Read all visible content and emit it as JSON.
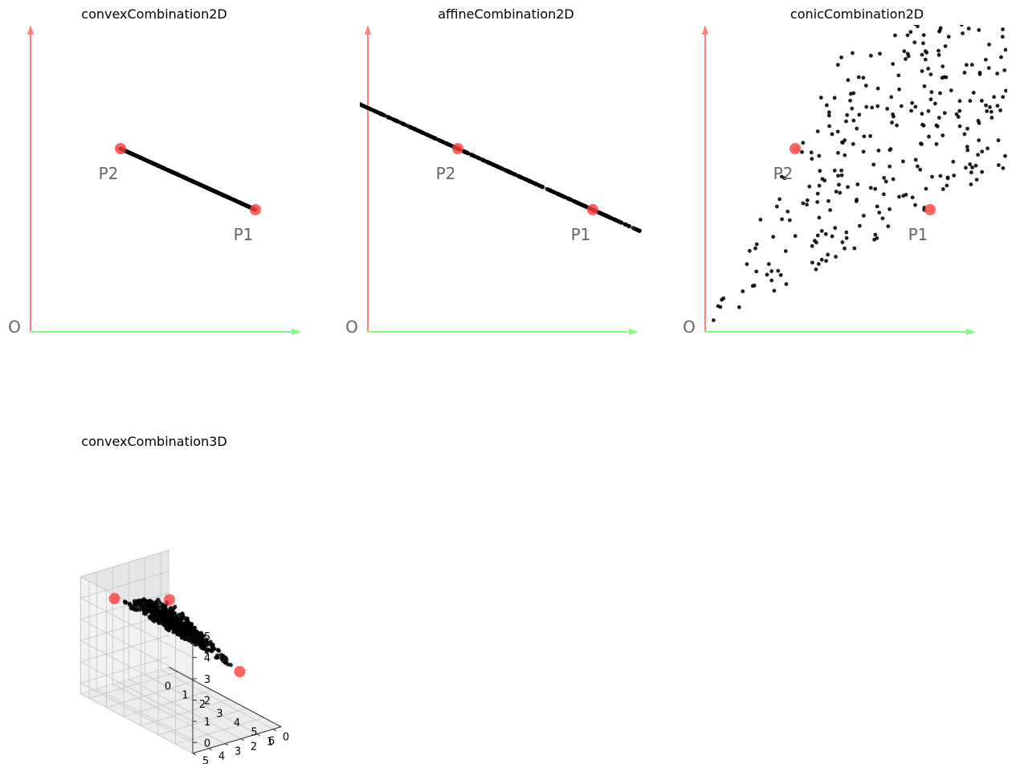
{
  "chart_data": [
    {
      "type": "scatter",
      "title": "convexCombination2D",
      "xlim": [
        0,
        4.5
      ],
      "ylim": [
        0,
        4.5
      ],
      "grid": false,
      "origin_label": "O",
      "points": [
        {
          "label": "P1",
          "x": 3.5,
          "y": 1.9
        },
        {
          "label": "P2",
          "x": 1.4,
          "y": 2.85
        }
      ],
      "samples": {
        "kind": "convex",
        "count": 400
      }
    },
    {
      "type": "scatter",
      "title": "affineCombination2D",
      "xlim": [
        0,
        4.5
      ],
      "ylim": [
        0,
        4.5
      ],
      "grid": false,
      "origin_label": "O",
      "points": [
        {
          "label": "P1",
          "x": 3.5,
          "y": 1.9
        },
        {
          "label": "P2",
          "x": 1.4,
          "y": 2.85
        }
      ],
      "samples": {
        "kind": "affine",
        "count": 500,
        "t_range": [
          -1.5,
          1.35
        ]
      }
    },
    {
      "type": "scatter",
      "title": "conicCombination2D",
      "xlim": [
        0,
        4.5
      ],
      "ylim": [
        0,
        4.5
      ],
      "grid": false,
      "origin_label": "O",
      "points": [
        {
          "label": "P1",
          "x": 3.5,
          "y": 1.9
        },
        {
          "label": "P2",
          "x": 1.4,
          "y": 2.85
        }
      ],
      "samples": {
        "kind": "conic",
        "count": 420,
        "coef_range": [
          0,
          1.5
        ]
      }
    },
    {
      "type": "scatter3d",
      "title": "convexCombination3D",
      "xlim": [
        -0.5,
        6
      ],
      "ylim": [
        -0.5,
        5
      ],
      "zlim": [
        -0.5,
        5
      ],
      "x_ticks": [
        "0",
        "1",
        "2",
        "3",
        "4",
        "5",
        "6"
      ],
      "y_ticks": [
        "0",
        "1",
        "2",
        "3",
        "4",
        "5"
      ],
      "z_ticks": [
        "0",
        "1",
        "2",
        "3",
        "4",
        "5"
      ],
      "grid": true,
      "points": [
        {
          "x": 0,
          "y": 0,
          "z": 3
        },
        {
          "x": 5,
          "y": 1,
          "z": 2
        },
        {
          "x": 1,
          "y": 4.5,
          "z": 4.5
        }
      ],
      "samples": {
        "kind": "convex",
        "count": 600
      }
    }
  ],
  "colors": {
    "point": "#ff3b3b",
    "sample": "#000000",
    "y_axis_arrow": "#ff7f7f",
    "x_axis_arrow": "#7fff7f",
    "label": "#666666",
    "pane_dark": "#e6e6e6",
    "pane_mid": "#ececec",
    "pane_light": "#f2f2f2",
    "grid": "#c8c8c8"
  }
}
